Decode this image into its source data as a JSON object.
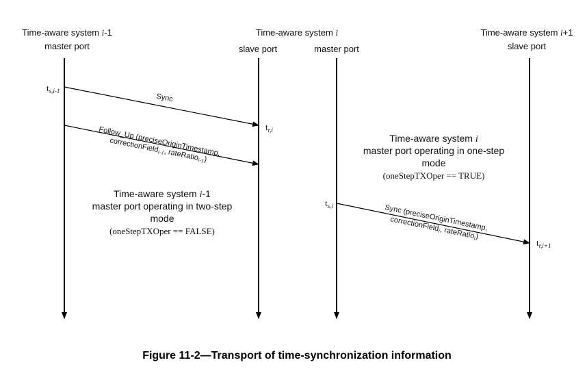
{
  "headers": {
    "sys_prev": {
      "base": "Time-aware system ",
      "var": "i",
      "suffix": "-1",
      "port": "master port"
    },
    "sys_i": {
      "base": "Time-aware system ",
      "var": "i",
      "slave_port": "slave port",
      "master_port": "master port"
    },
    "sys_next": {
      "base": "Time-aware system ",
      "var": "i",
      "suffix": "+1",
      "port": "slave port"
    }
  },
  "timestamps": {
    "ts_prev": {
      "base": "t",
      "sub": "s,i-1"
    },
    "tr_i": {
      "base": "t",
      "sub": "r,i"
    },
    "ts_i": {
      "base": "t",
      "sub": "s,i"
    },
    "tr_next": {
      "base": "t",
      "sub": "r,i+1"
    }
  },
  "messages": {
    "sync_prev": "Sync",
    "follow_up": {
      "line1": "Follow_Up (preciseOriginTimestamp,",
      "line2_a": "correctionField",
      "line2_a_sub": "i-1",
      "line2_b": ", rateRatio",
      "line2_b_sub": "i-1",
      "line2_c": ")"
    },
    "sync_i": {
      "line1": "Sync (preciseOriginTimestamp,",
      "line2_a": "correctionField",
      "line2_a_sub": "i",
      "line2_b": ", rateRatio",
      "line2_b_sub": "i",
      "line2_c": ")"
    }
  },
  "notes": {
    "two_step": {
      "line1_base": "Time-aware system ",
      "line1_var": "i",
      "line1_suffix": "-1",
      "line2": "master port  operating in two-step",
      "line3": "mode",
      "line4": "(oneStepTXOper == FALSE)"
    },
    "one_step": {
      "line1_base": "Time-aware system ",
      "line1_var": "i",
      "line2": "master port  operating in one-step",
      "line3": "mode",
      "line4": "(oneStepTXOper == TRUE)"
    }
  },
  "caption": "Figure 11-2—Transport of time-synchronization information",
  "colors": {
    "line": "#000000",
    "text": "#111111"
  }
}
